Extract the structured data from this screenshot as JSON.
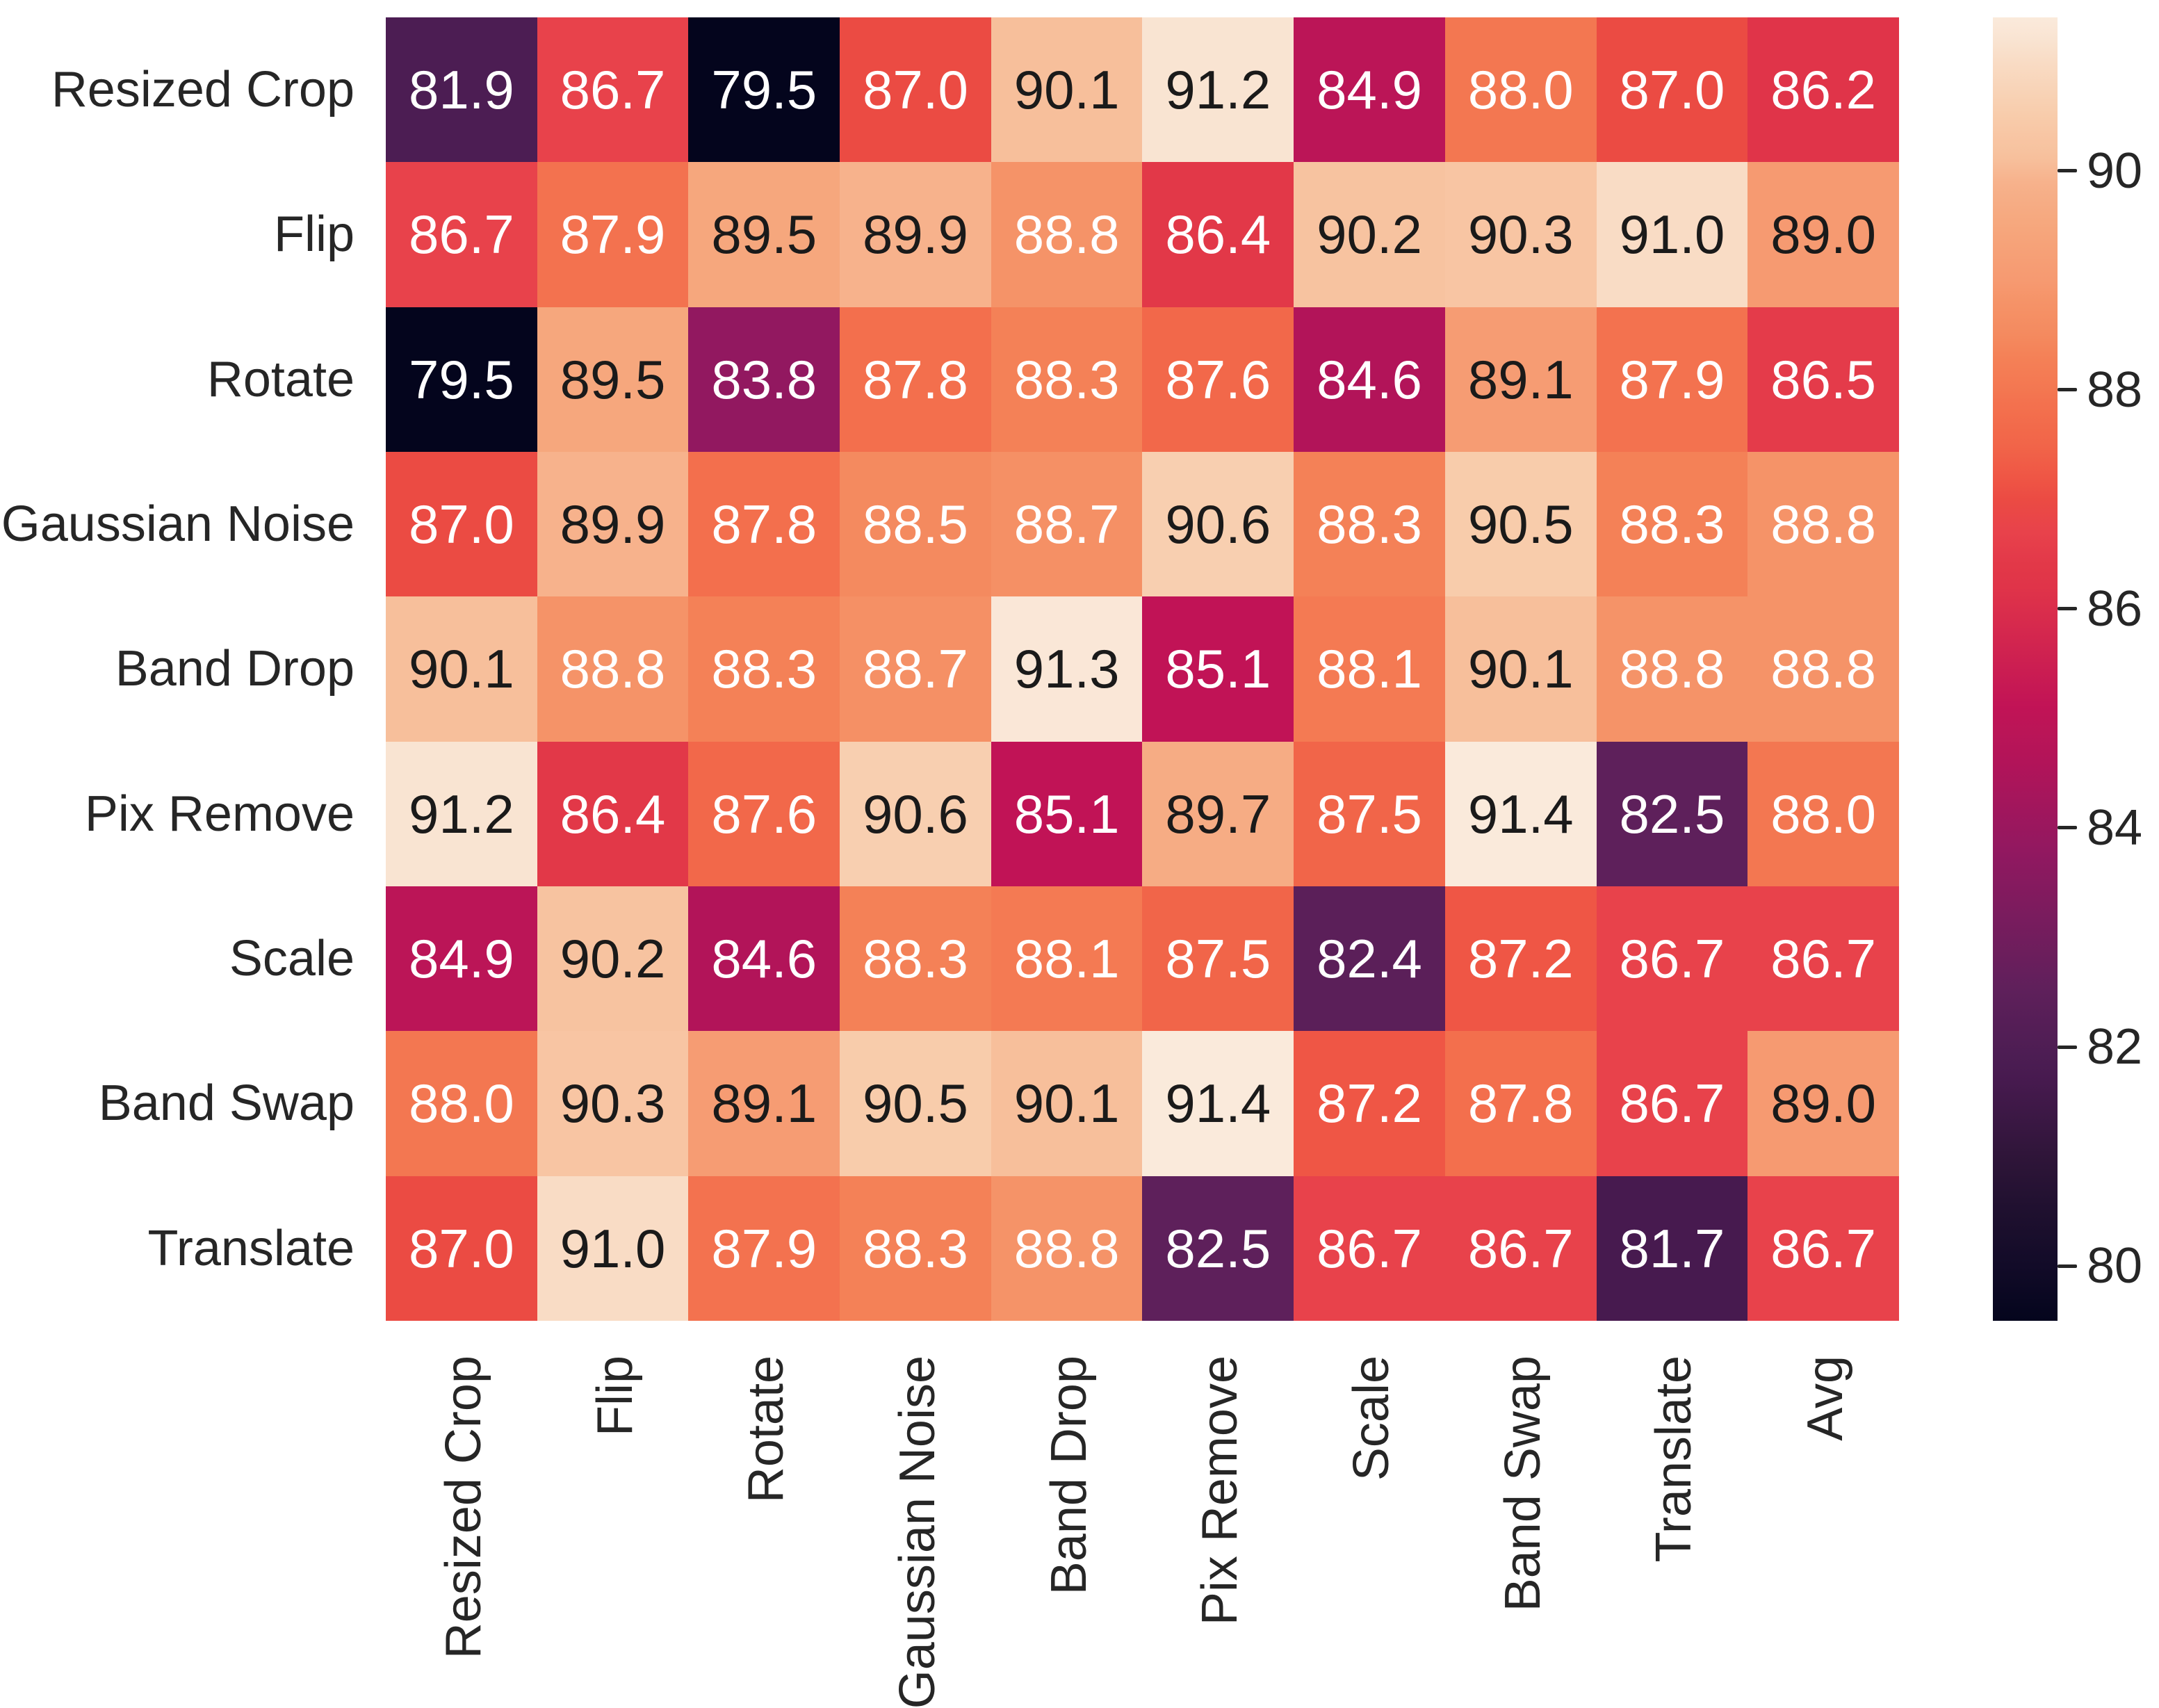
{
  "chart_data": {
    "type": "heatmap",
    "title": "",
    "rows": [
      "Resized Crop",
      "Flip",
      "Rotate",
      "Gaussian Noise",
      "Band Drop",
      "Pix Remove",
      "Scale",
      "Band Swap",
      "Translate"
    ],
    "columns": [
      "Resized Crop",
      "Flip",
      "Rotate",
      "Gaussian Noise",
      "Band Drop",
      "Pix Remove",
      "Scale",
      "Band Swap",
      "Translate",
      "Avg"
    ],
    "values": [
      [
        81.9,
        86.7,
        79.5,
        87.0,
        90.1,
        91.2,
        84.9,
        88.0,
        87.0,
        86.2
      ],
      [
        86.7,
        87.9,
        89.5,
        89.9,
        88.8,
        86.4,
        90.2,
        90.3,
        91.0,
        89.0
      ],
      [
        79.5,
        89.5,
        83.8,
        87.8,
        88.3,
        87.6,
        84.6,
        89.1,
        87.9,
        86.5
      ],
      [
        87.0,
        89.9,
        87.8,
        88.5,
        88.7,
        90.6,
        88.3,
        90.5,
        88.3,
        88.8
      ],
      [
        90.1,
        88.8,
        88.3,
        88.7,
        91.3,
        85.1,
        88.1,
        90.1,
        88.8,
        88.8
      ],
      [
        91.2,
        86.4,
        87.6,
        90.6,
        85.1,
        89.7,
        87.5,
        91.4,
        82.5,
        88.0
      ],
      [
        84.9,
        90.2,
        84.6,
        88.3,
        88.1,
        87.5,
        82.4,
        87.2,
        86.7,
        86.7
      ],
      [
        88.0,
        90.3,
        89.1,
        90.5,
        90.1,
        91.4,
        87.2,
        87.8,
        86.7,
        89.0
      ],
      [
        87.0,
        91.0,
        87.9,
        88.3,
        88.8,
        82.5,
        86.7,
        86.7,
        81.7,
        86.7
      ]
    ],
    "value_format": "1-decimal",
    "colorbar": {
      "ticks": [
        90,
        88,
        86,
        84,
        82,
        80
      ],
      "vmin": 79.5,
      "vmax": 91.4
    },
    "colormap_name": "rocket",
    "colormap_anchors": [
      [
        79.5,
        "#04051D"
      ],
      [
        80.0,
        "#120B28"
      ],
      [
        80.5,
        "#1F102F"
      ],
      [
        81.0,
        "#2F1539"
      ],
      [
        81.7,
        "#471A4F"
      ],
      [
        81.9,
        "#4C1D53"
      ],
      [
        82.4,
        "#5B1F59"
      ],
      [
        82.5,
        "#5E205B"
      ],
      [
        83.8,
        "#921860"
      ],
      [
        84.6,
        "#B21459"
      ],
      [
        84.9,
        "#BB1557"
      ],
      [
        85.1,
        "#C11356"
      ],
      [
        86.2,
        "#E03449"
      ],
      [
        86.4,
        "#E23848"
      ],
      [
        86.5,
        "#E43B4A"
      ],
      [
        86.7,
        "#E8424B"
      ],
      [
        87.0,
        "#EB4B43"
      ],
      [
        87.2,
        "#EF5645"
      ],
      [
        87.5,
        "#F16549"
      ],
      [
        87.6,
        "#F2684A"
      ],
      [
        87.8,
        "#F36F4D"
      ],
      [
        87.9,
        "#F3724F"
      ],
      [
        88.0,
        "#F37751"
      ],
      [
        88.1,
        "#F47A53"
      ],
      [
        88.3,
        "#F48157"
      ],
      [
        88.5,
        "#F48A5F"
      ],
      [
        88.7,
        "#F59065"
      ],
      [
        88.8,
        "#F59368"
      ],
      [
        89.0,
        "#F69A71"
      ],
      [
        89.1,
        "#F69C73"
      ],
      [
        89.5,
        "#F6A77D"
      ],
      [
        89.7,
        "#F6AC84"
      ],
      [
        89.9,
        "#F7B28C"
      ],
      [
        90.1,
        "#F7BF9B"
      ],
      [
        90.2,
        "#F7C3A0"
      ],
      [
        90.3,
        "#F8C5A3"
      ],
      [
        90.5,
        "#F8CCAB"
      ],
      [
        90.6,
        "#F8CFB0"
      ],
      [
        91.0,
        "#F9DCC5"
      ],
      [
        91.2,
        "#F9E4D2"
      ],
      [
        91.3,
        "#FAE7D7"
      ],
      [
        91.4,
        "#FAEADB"
      ]
    ],
    "annotation_text_colors": {
      "light": "#FFFFFF",
      "dark": "#1A1A1A",
      "dark_text_threshold": 88.9
    },
    "axis_text_color": "#262626",
    "background_color": "#FFFFFF",
    "legend_position": "right-colorbar",
    "grid": false
  }
}
